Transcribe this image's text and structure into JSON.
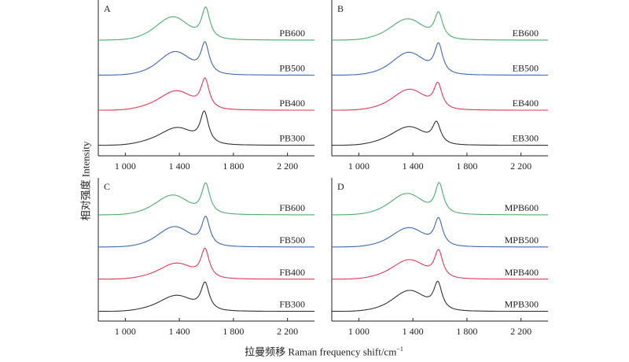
{
  "chart_data": {
    "type": "line",
    "xlabel": "拉曼频移 Raman frequency shift/cm",
    "xlabel_superscript": "−1",
    "ylabel": "相对强度 Intensity",
    "xlim": [
      800,
      2400
    ],
    "ylim": [
      0,
      4.4
    ],
    "xticks": [
      1000,
      1400,
      1800,
      2200
    ],
    "xtick_labels": [
      "1 000",
      "1 400",
      "1 800",
      "2 200"
    ],
    "grid": false,
    "colors": {
      "300": "#333333",
      "400": "#e23a4d",
      "500": "#3e68b8",
      "600": "#4cae6c"
    },
    "panels": [
      {
        "letter": "A",
        "series": [
          {
            "name": "PB300",
            "temp": "300",
            "offset": 0.3,
            "D": [
              1390,
              0.45
            ],
            "G": [
              1585,
              0.9
            ],
            "shoulder": 0.12
          },
          {
            "name": "PB400",
            "temp": "400",
            "offset": 1.3,
            "D": [
              1385,
              0.5
            ],
            "G": [
              1590,
              0.85
            ],
            "shoulder": 0.12
          },
          {
            "name": "PB500",
            "temp": "500",
            "offset": 2.3,
            "D": [
              1375,
              0.62
            ],
            "G": [
              1590,
              0.88
            ],
            "shoulder": 0.1
          },
          {
            "name": "PB600",
            "temp": "600",
            "offset": 3.3,
            "D": [
              1360,
              0.6
            ],
            "G": [
              1595,
              0.9
            ],
            "shoulder": 0.12
          }
        ]
      },
      {
        "letter": "B",
        "series": [
          {
            "name": "EB300",
            "temp": "300",
            "offset": 0.3,
            "D": [
              1380,
              0.48
            ],
            "G": [
              1575,
              0.6
            ],
            "shoulder": 0.12
          },
          {
            "name": "EB400",
            "temp": "400",
            "offset": 1.3,
            "D": [
              1380,
              0.55
            ],
            "G": [
              1585,
              0.72
            ],
            "shoulder": 0.1
          },
          {
            "name": "EB500",
            "temp": "500",
            "offset": 2.3,
            "D": [
              1375,
              0.6
            ],
            "G": [
              1590,
              0.85
            ],
            "shoulder": 0.1
          },
          {
            "name": "EB600",
            "temp": "600",
            "offset": 3.3,
            "D": [
              1370,
              0.55
            ],
            "G": [
              1590,
              0.75
            ],
            "shoulder": 0.12
          }
        ]
      },
      {
        "letter": "C",
        "series": [
          {
            "name": "FB300",
            "temp": "300",
            "offset": 0.3,
            "D": [
              1385,
              0.45
            ],
            "G": [
              1590,
              0.85
            ],
            "shoulder": 0.1
          },
          {
            "name": "FB400",
            "temp": "400",
            "offset": 1.3,
            "D": [
              1385,
              0.45
            ],
            "G": [
              1590,
              0.9
            ],
            "shoulder": 0.1
          },
          {
            "name": "FB500",
            "temp": "500",
            "offset": 2.3,
            "D": [
              1370,
              0.58
            ],
            "G": [
              1595,
              0.9
            ],
            "shoulder": 0.1
          },
          {
            "name": "FB600",
            "temp": "600",
            "offset": 3.3,
            "D": [
              1360,
              0.55
            ],
            "G": [
              1595,
              0.95
            ],
            "shoulder": 0.12
          }
        ]
      },
      {
        "letter": "D",
        "series": [
          {
            "name": "MPB300",
            "temp": "300",
            "offset": 0.3,
            "D": [
              1380,
              0.6
            ],
            "G": [
              1585,
              0.85
            ],
            "shoulder": 0.1
          },
          {
            "name": "MPB400",
            "temp": "400",
            "offset": 1.3,
            "D": [
              1380,
              0.55
            ],
            "G": [
              1590,
              0.85
            ],
            "shoulder": 0.12
          },
          {
            "name": "MPB500",
            "temp": "500",
            "offset": 2.3,
            "D": [
              1375,
              0.55
            ],
            "G": [
              1590,
              0.85
            ],
            "shoulder": 0.1
          },
          {
            "name": "MPB600",
            "temp": "600",
            "offset": 3.3,
            "D": [
              1365,
              0.6
            ],
            "G": [
              1595,
              0.95
            ],
            "shoulder": 0.12
          }
        ]
      }
    ]
  }
}
